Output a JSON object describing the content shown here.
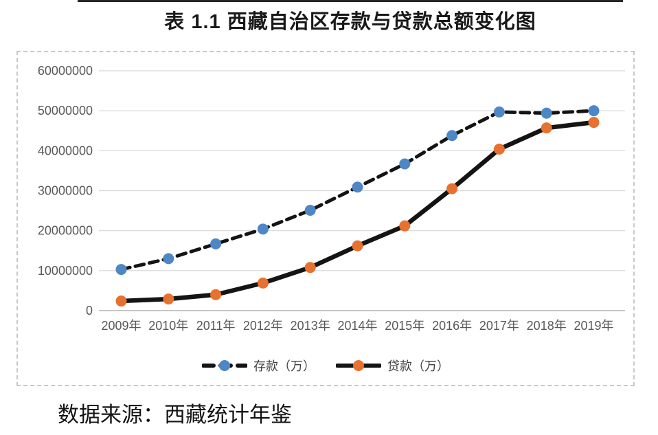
{
  "title": "表 1.1 西藏自治区存款与贷款总额变化图",
  "source_note": "数据来源：西藏统计年鉴",
  "chart_data": {
    "type": "line",
    "title": "表 1.1 西藏自治区存款与贷款总额变化图",
    "categories": [
      "2009年",
      "2010年",
      "2011年",
      "2012年",
      "2013年",
      "2014年",
      "2015年",
      "2016年",
      "2017年",
      "2018年",
      "2019年"
    ],
    "series": [
      {
        "key": "deposits",
        "name": "存款（万）",
        "line_style": "dashed",
        "line_color": "#141414",
        "marker_color": "#4e87c6",
        "values": [
          10300000,
          13000000,
          16700000,
          20400000,
          25100000,
          30900000,
          36700000,
          43800000,
          49700000,
          49400000,
          50000000
        ]
      },
      {
        "key": "loans",
        "name": "贷款（万）",
        "line_style": "solid",
        "line_color": "#141414",
        "marker_color": "#e7712f",
        "values": [
          2400000,
          2900000,
          4000000,
          6900000,
          10800000,
          16200000,
          21200000,
          30500000,
          40400000,
          45700000,
          47100000
        ]
      }
    ],
    "xlabel": "",
    "ylabel": "",
    "ylim": [
      0,
      60000000
    ],
    "y_ticks": [
      0,
      10000000,
      20000000,
      30000000,
      40000000,
      50000000,
      60000000
    ],
    "grid": "horizontal",
    "legend_position": "bottom"
  },
  "colors": {
    "deposit_marker": "#4e87c6",
    "loan_marker": "#e7712f",
    "series_line": "#141414",
    "gridline": "#d6d6d6",
    "axis_line": "#b3b3b3",
    "tick_text": "#595959",
    "box_border": "#c8c8c8"
  }
}
